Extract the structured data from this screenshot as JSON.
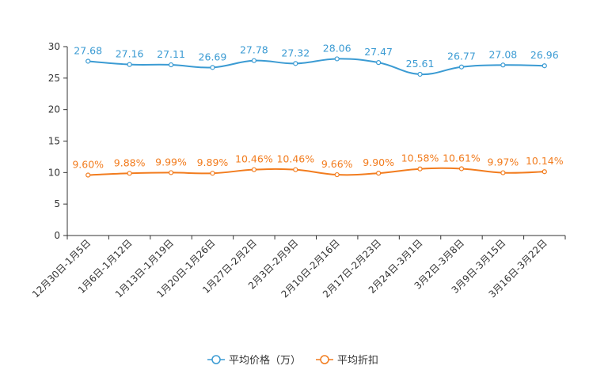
{
  "chart_data": {
    "type": "line",
    "title": "",
    "xlabel": "",
    "ylabel": "",
    "ylim": [
      0,
      30
    ],
    "yticks": [
      0,
      5,
      10,
      15,
      20,
      25,
      30
    ],
    "grid": false,
    "legend_position": "bottom",
    "categories": [
      "12月30日-1月5日",
      "1月6日-1月12日",
      "1月13日-1月19日",
      "1月20日-1月26日",
      "1月27日-2月2日",
      "2月3日-2月9日",
      "2月10日-2月16日",
      "2月17日-2月23日",
      "2月24日-3月1日",
      "3月2日-3月8日",
      "3月9日-3月15日",
      "3月16日-3月22日"
    ],
    "series": [
      {
        "name": "平均价格（万）",
        "color": "#3b9bd3",
        "values": [
          27.68,
          27.16,
          27.11,
          26.69,
          27.78,
          27.32,
          28.06,
          27.47,
          25.61,
          26.77,
          27.08,
          26.96
        ],
        "labels": [
          "27.68",
          "27.16",
          "27.11",
          "26.69",
          "27.78",
          "27.32",
          "28.06",
          "27.47",
          "25.61",
          "26.77",
          "27.08",
          "26.96"
        ]
      },
      {
        "name": "平均折扣",
        "color": "#f27c1e",
        "values": [
          9.6,
          9.88,
          9.99,
          9.89,
          10.46,
          10.46,
          9.66,
          9.9,
          10.58,
          10.61,
          9.97,
          10.14
        ],
        "labels": [
          "9.60%",
          "9.88%",
          "9.99%",
          "9.89%",
          "10.46%",
          "10.46%",
          "9.66%",
          "9.90%",
          "10.58%",
          "10.61%",
          "9.97%",
          "10.14%"
        ]
      }
    ]
  }
}
